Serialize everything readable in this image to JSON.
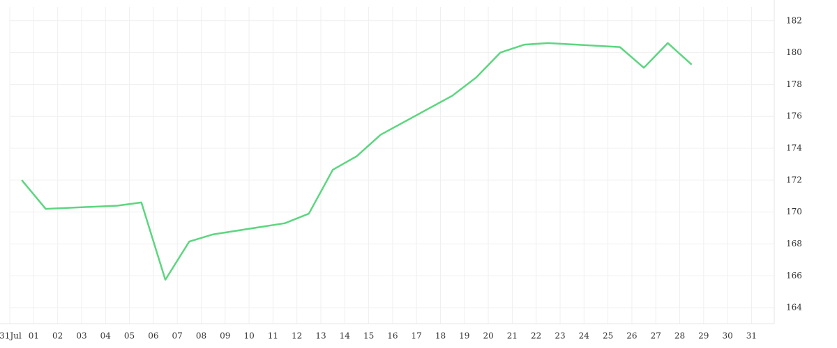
{
  "chart_data": {
    "type": "line",
    "x": [
      0.5,
      1.5,
      4.5,
      5.5,
      6.5,
      7.5,
      8.5,
      11.5,
      12.5,
      13.5,
      14.5,
      15.5,
      18.5,
      19.5,
      20.5,
      21.5,
      22.5,
      25.5,
      26.5,
      27.5,
      28.5
    ],
    "series": [
      {
        "color": "#5cd67f",
        "values": [
          172.0,
          170.2,
          170.4,
          170.6,
          165.75,
          168.15,
          168.6,
          169.3,
          169.9,
          172.65,
          173.5,
          174.85,
          177.3,
          178.45,
          180.0,
          180.5,
          180.6,
          180.35,
          179.05,
          180.6,
          179.25
        ]
      }
    ],
    "xlim": [
      -0.41,
      31.95
    ],
    "xticks": [
      {
        "value": 0,
        "label": "31Jul"
      },
      {
        "value": 1,
        "label": "01"
      },
      {
        "value": 2,
        "label": "02"
      },
      {
        "value": 3,
        "label": "03"
      },
      {
        "value": 4,
        "label": "04"
      },
      {
        "value": 5,
        "label": "05"
      },
      {
        "value": 6,
        "label": "06"
      },
      {
        "value": 7,
        "label": "07"
      },
      {
        "value": 8,
        "label": "08"
      },
      {
        "value": 9,
        "label": "09"
      },
      {
        "value": 10,
        "label": "10"
      },
      {
        "value": 11,
        "label": "11"
      },
      {
        "value": 12,
        "label": "12"
      },
      {
        "value": 13,
        "label": "13"
      },
      {
        "value": 14,
        "label": "14"
      },
      {
        "value": 15,
        "label": "15"
      },
      {
        "value": 16,
        "label": "16"
      },
      {
        "value": 17,
        "label": "17"
      },
      {
        "value": 18,
        "label": "18"
      },
      {
        "value": 19,
        "label": "19"
      },
      {
        "value": 20,
        "label": "20"
      },
      {
        "value": 21,
        "label": "21"
      },
      {
        "value": 22,
        "label": "22"
      },
      {
        "value": 23,
        "label": "23"
      },
      {
        "value": 24,
        "label": "24"
      },
      {
        "value": 25,
        "label": "25"
      },
      {
        "value": 26,
        "label": "26"
      },
      {
        "value": 27,
        "label": "27"
      },
      {
        "value": 28,
        "label": "28"
      },
      {
        "value": 29,
        "label": "29"
      },
      {
        "value": 30,
        "label": "30"
      },
      {
        "value": 31,
        "label": "31"
      }
    ],
    "ylim": [
      163.0,
      183.3
    ],
    "yticks": [
      164,
      166,
      168,
      170,
      172,
      174,
      176,
      178,
      180,
      182
    ],
    "grid": true
  }
}
